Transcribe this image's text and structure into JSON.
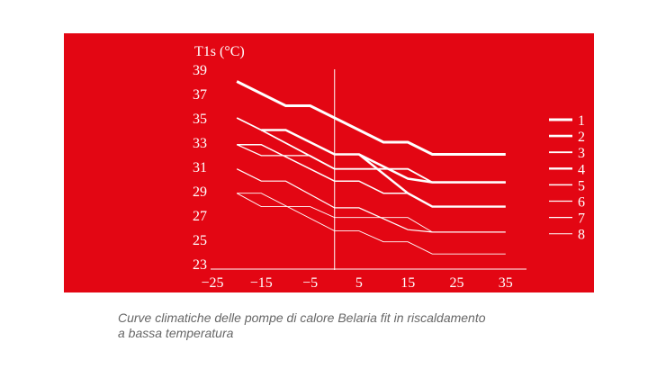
{
  "caption": {
    "line1": "Curve climatiche delle pompe di calore Belaria fit in riscaldamento",
    "line2": "a bassa temperatura"
  },
  "chart_data": {
    "type": "line",
    "ylabel": "T1s (°C)",
    "xlabel": "",
    "xlim": [
      -25,
      35
    ],
    "ylim": [
      23,
      39
    ],
    "xticks": [
      -25,
      -15,
      -5,
      5,
      15,
      25,
      35
    ],
    "yticks": [
      23,
      25,
      27,
      29,
      31,
      33,
      35,
      37,
      39
    ],
    "background": "#e30613",
    "line_color": "#ffffff",
    "legend_position": "right",
    "series": [
      {
        "name": "1",
        "weight": 3,
        "points": [
          [
            -20,
            38
          ],
          [
            -10,
            36
          ],
          [
            -5,
            36
          ],
          [
            10,
            33
          ],
          [
            15,
            33
          ],
          [
            20,
            32
          ],
          [
            35,
            32
          ]
        ]
      },
      {
        "name": "2",
        "weight": 2.6,
        "points": [
          [
            -15,
            34
          ],
          [
            -10,
            34
          ],
          [
            0,
            32
          ],
          [
            5,
            32
          ],
          [
            10,
            31
          ],
          [
            15,
            30
          ],
          [
            20,
            29.7
          ],
          [
            35,
            29.7
          ]
        ]
      },
      {
        "name": "3",
        "weight": 1.8,
        "points": [
          [
            -20,
            35
          ],
          [
            -15,
            34
          ],
          [
            0,
            30.8
          ],
          [
            15,
            30.8
          ],
          [
            20,
            29.7
          ],
          [
            35,
            29.7
          ]
        ]
      },
      {
        "name": "4",
        "weight": 2.4,
        "points": [
          [
            5,
            32
          ],
          [
            15,
            28.8
          ],
          [
            20,
            27.7
          ],
          [
            35,
            27.7
          ]
        ]
      },
      {
        "name": "5",
        "weight": 1.5,
        "points": [
          [
            -20,
            32.8
          ],
          [
            -15,
            32.8
          ],
          [
            0,
            29.8
          ],
          [
            5,
            29.8
          ],
          [
            10,
            28.8
          ],
          [
            15,
            28.8
          ]
        ]
      },
      {
        "name": "6",
        "weight": 1.3,
        "points": [
          [
            -20,
            32.8
          ],
          [
            -15,
            31.9
          ],
          [
            -5,
            31.9
          ],
          [
            0,
            30.8
          ]
        ]
      },
      {
        "name": "7",
        "weight": 1.2,
        "points": [
          [
            -20,
            30.8
          ],
          [
            -15,
            29.8
          ],
          [
            -10,
            29.8
          ],
          [
            0,
            27.6
          ],
          [
            5,
            27.6
          ],
          [
            15,
            25.8
          ],
          [
            20,
            25.6
          ],
          [
            35,
            25.6
          ]
        ]
      },
      {
        "name": "8",
        "weight": 0.9,
        "points": [
          [
            -20,
            28.8
          ],
          [
            -15,
            28.8
          ],
          [
            0,
            25.7
          ],
          [
            5,
            25.7
          ],
          [
            10,
            24.8
          ],
          [
            15,
            24.8
          ],
          [
            20,
            23.8
          ],
          [
            35,
            23.8
          ]
        ]
      },
      {
        "name": "",
        "weight": 0.9,
        "points": [
          [
            -20,
            28.8
          ],
          [
            -15,
            27.7
          ],
          [
            -5,
            27.7
          ],
          [
            0,
            26.8
          ],
          [
            15,
            26.8
          ],
          [
            20,
            25.6
          ]
        ]
      }
    ]
  }
}
